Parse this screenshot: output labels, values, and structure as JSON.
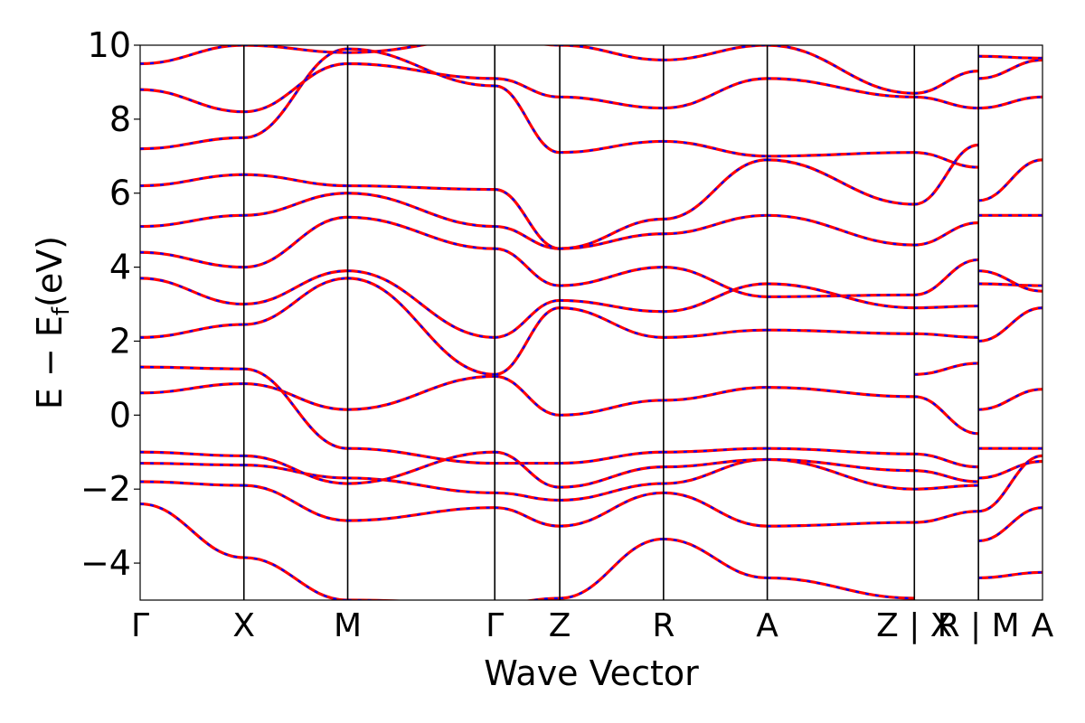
{
  "chart_data": {
    "type": "line",
    "title": "",
    "xlabel": "Wave Vector",
    "ylabel_main": "E − E",
    "ylabel_sub": "f",
    "ylabel_unit": "(eV)",
    "ylim": [
      -5,
      10
    ],
    "xlim": [
      0,
      1
    ],
    "grid": false,
    "legend": "none",
    "yticks": [
      -4,
      -2,
      0,
      2,
      4,
      6,
      8,
      10
    ],
    "ytick_labels": [
      "−4",
      "−2",
      "0",
      "2",
      "4",
      "6",
      "8",
      "10"
    ],
    "kpoints": [
      {
        "label": "Γ",
        "x": 0.0
      },
      {
        "label": "X",
        "x": 0.115
      },
      {
        "label": "M",
        "x": 0.23
      },
      {
        "label": "Γ",
        "x": 0.393
      },
      {
        "label": "Z",
        "x": 0.465
      },
      {
        "label": "R",
        "x": 0.58
      },
      {
        "label": "A",
        "x": 0.695
      },
      {
        "label": "Z | X",
        "x": 0.858
      },
      {
        "label": "R | M",
        "x": 0.929
      },
      {
        "label": "A",
        "x": 1.0
      }
    ],
    "colors": {
      "series_a": "#ff0000",
      "series_b": "#0000ff",
      "axis": "#000000"
    },
    "segments": [
      {
        "x0": 0.0,
        "x1": 0.115,
        "bands": [
          [
            -2.4,
            -3.85
          ],
          [
            -1.8,
            -1.9
          ],
          [
            -1.3,
            -1.35
          ],
          [
            -1.0,
            -1.1
          ],
          [
            0.6,
            0.85
          ],
          [
            1.3,
            1.25
          ],
          [
            2.1,
            2.45
          ],
          [
            3.7,
            3.0
          ],
          [
            4.4,
            4.0
          ],
          [
            5.1,
            5.4
          ],
          [
            6.2,
            6.5
          ],
          [
            7.2,
            7.5
          ],
          [
            8.8,
            8.2
          ],
          [
            9.5,
            10
          ]
        ]
      },
      {
        "x0": 0.115,
        "x1": 0.23,
        "bands": [
          [
            -3.85,
            -5.0
          ],
          [
            -1.9,
            -2.85
          ],
          [
            -1.35,
            -1.7
          ],
          [
            -1.1,
            -1.85
          ],
          [
            0.85,
            0.15
          ],
          [
            1.25,
            -0.9
          ],
          [
            2.45,
            3.7
          ],
          [
            3.0,
            3.9
          ],
          [
            4.0,
            5.35
          ],
          [
            5.4,
            6.0
          ],
          [
            6.5,
            6.2
          ],
          [
            7.5,
            9.9
          ],
          [
            8.2,
            9.5
          ],
          [
            10,
            9.8
          ]
        ]
      },
      {
        "x0": 0.23,
        "x1": 0.393,
        "bands": [
          [
            -5.0,
            -5.1
          ],
          [
            -2.85,
            -2.5
          ],
          [
            -1.7,
            -2.1
          ],
          [
            -1.85,
            -1.0
          ],
          [
            0.15,
            1.05
          ],
          [
            -0.9,
            -1.3
          ],
          [
            3.7,
            1.1
          ],
          [
            3.9,
            2.1
          ],
          [
            5.35,
            4.5
          ],
          [
            6.0,
            5.1
          ],
          [
            6.2,
            6.1
          ],
          [
            9.9,
            8.9
          ],
          [
            9.5,
            9.1
          ],
          [
            9.8,
            10.2
          ]
        ]
      },
      {
        "x0": 0.393,
        "x1": 0.465,
        "bands": [
          [
            -5.1,
            -4.95
          ],
          [
            -2.5,
            -3.0
          ],
          [
            -2.1,
            -2.3
          ],
          [
            -1.0,
            -1.95
          ],
          [
            1.05,
            0.0
          ],
          [
            -1.3,
            -1.3
          ],
          [
            1.1,
            2.9
          ],
          [
            2.1,
            3.1
          ],
          [
            4.5,
            3.5
          ],
          [
            5.1,
            4.5
          ],
          [
            6.1,
            4.5
          ],
          [
            8.9,
            7.1
          ],
          [
            9.1,
            8.6
          ],
          [
            10.2,
            10
          ]
        ]
      },
      {
        "x0": 0.465,
        "x1": 0.58,
        "bands": [
          [
            -4.95,
            -3.35
          ],
          [
            -3.0,
            -2.1
          ],
          [
            -2.3,
            -1.85
          ],
          [
            -1.95,
            -1.4
          ],
          [
            0.0,
            0.4
          ],
          [
            -1.3,
            -1.0
          ],
          [
            2.9,
            2.1
          ],
          [
            3.1,
            2.8
          ],
          [
            3.5,
            4.0
          ],
          [
            4.5,
            4.9
          ],
          [
            4.5,
            5.3
          ],
          [
            7.1,
            7.4
          ],
          [
            8.6,
            8.3
          ],
          [
            10,
            9.6
          ]
        ]
      },
      {
        "x0": 0.58,
        "x1": 0.695,
        "bands": [
          [
            -3.35,
            -4.4
          ],
          [
            -2.1,
            -3.0
          ],
          [
            -1.85,
            -1.2
          ],
          [
            -1.4,
            -1.2
          ],
          [
            0.4,
            0.75
          ],
          [
            -1.0,
            -0.9
          ],
          [
            2.1,
            2.3
          ],
          [
            2.8,
            3.55
          ],
          [
            4.0,
            3.2
          ],
          [
            4.9,
            5.4
          ],
          [
            5.3,
            6.9
          ],
          [
            7.4,
            7.0
          ],
          [
            8.3,
            9.1
          ],
          [
            9.6,
            10
          ]
        ]
      },
      {
        "x0": 0.695,
        "x1": 0.858,
        "bands": [
          [
            -4.4,
            -4.95
          ],
          [
            -3.0,
            -2.9
          ],
          [
            -1.2,
            -2.0
          ],
          [
            -1.2,
            -1.5
          ],
          [
            0.75,
            0.5
          ],
          [
            -0.9,
            -1.05
          ],
          [
            2.3,
            2.2
          ],
          [
            3.55,
            2.9
          ],
          [
            3.2,
            3.25
          ],
          [
            5.4,
            4.6
          ],
          [
            6.9,
            5.7
          ],
          [
            7.0,
            7.1
          ],
          [
            9.1,
            8.6
          ],
          [
            10,
            8.7
          ]
        ]
      },
      {
        "x0": 0.858,
        "x1": 0.929,
        "bands": [
          [
            -2.9,
            -2.6
          ],
          [
            -2.0,
            -1.9
          ],
          [
            -1.5,
            -1.8
          ],
          [
            -1.05,
            -1.4
          ],
          [
            0.5,
            -0.5
          ],
          [
            1.1,
            1.4
          ],
          [
            2.2,
            2.1
          ],
          [
            2.9,
            2.95
          ],
          [
            3.25,
            4.2
          ],
          [
            4.6,
            5.2
          ],
          [
            5.7,
            7.3
          ],
          [
            7.1,
            6.7
          ],
          [
            8.6,
            8.3
          ],
          [
            8.7,
            9.3
          ]
        ]
      },
      {
        "x0": 0.929,
        "x1": 1.0,
        "bands": [
          [
            -4.4,
            -4.25
          ],
          [
            -3.4,
            -2.5
          ],
          [
            -2.6,
            -1.1
          ],
          [
            -1.7,
            -1.25
          ],
          [
            -0.9,
            -0.9
          ],
          [
            0.15,
            0.7
          ],
          [
            2.0,
            2.9
          ],
          [
            3.55,
            3.5
          ],
          [
            3.9,
            3.35
          ],
          [
            5.4,
            5.4
          ],
          [
            5.8,
            6.9
          ],
          [
            8.3,
            8.6
          ],
          [
            9.1,
            9.6
          ],
          [
            9.7,
            9.65
          ]
        ]
      }
    ]
  }
}
